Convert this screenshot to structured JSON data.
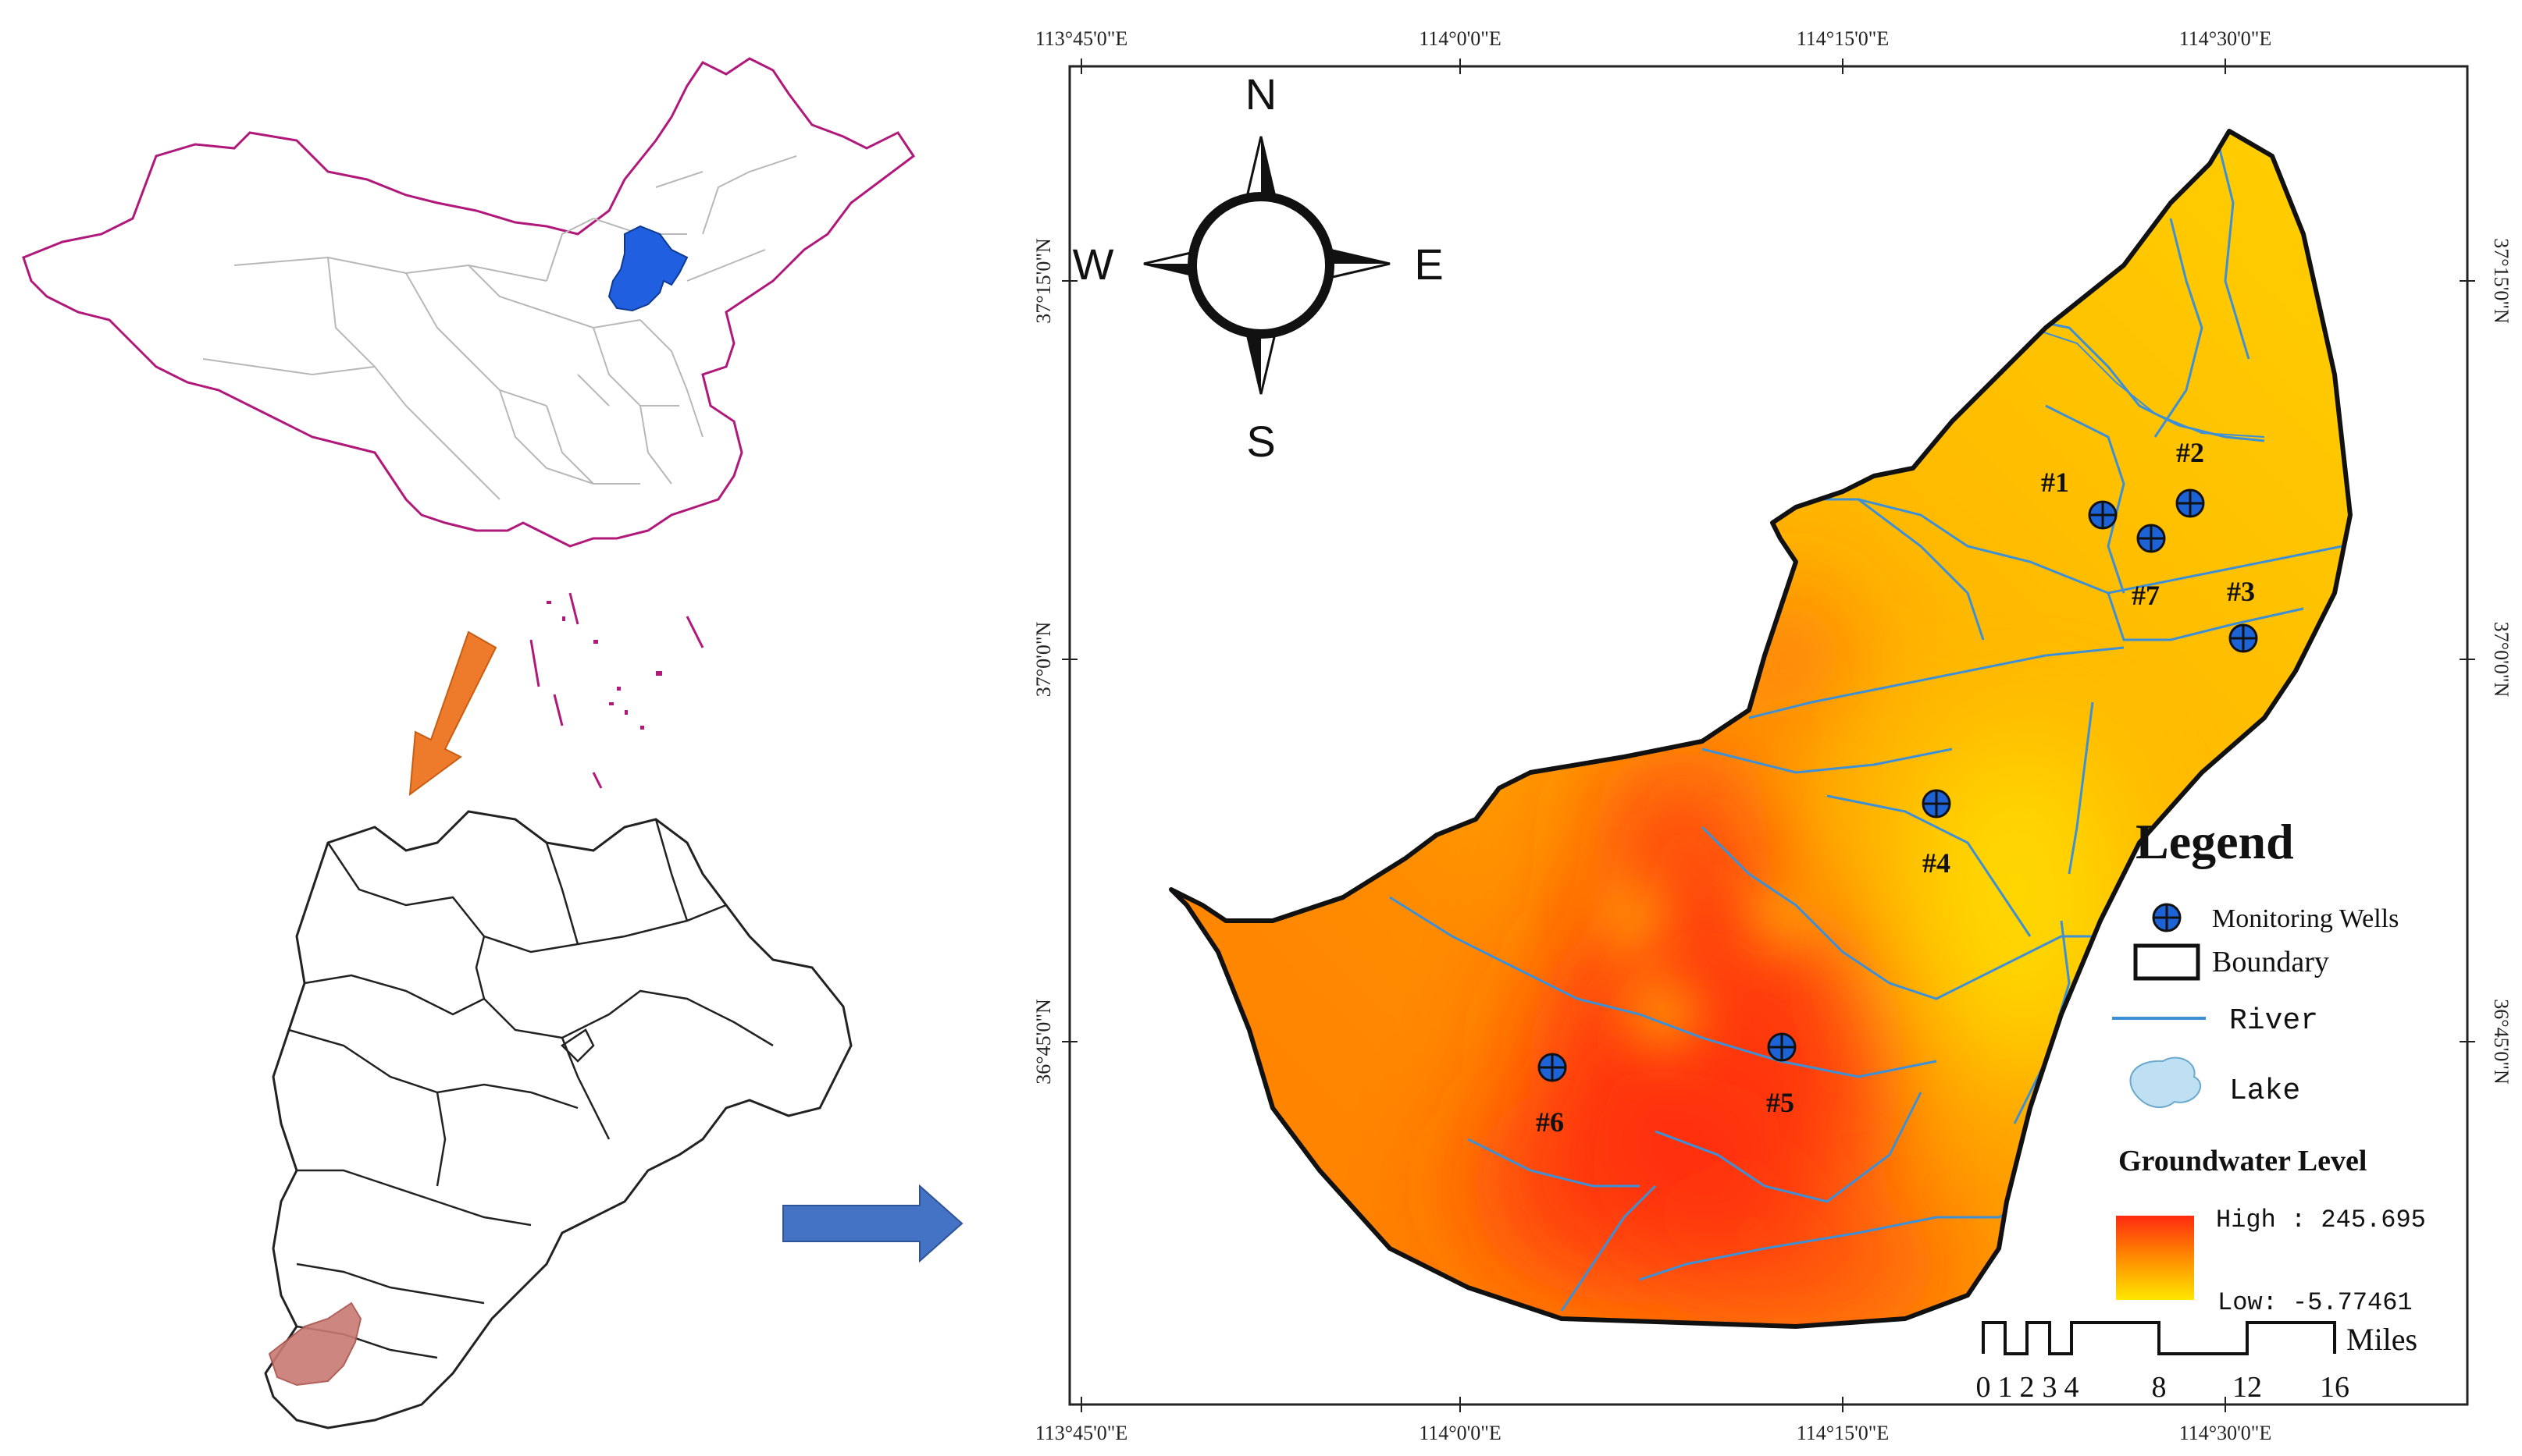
{
  "colors": {
    "china_outline": "#b0187a",
    "province_lines": "#b8b8b8",
    "hebei_fill": "#1f5fe0",
    "study_area_fill": "#c97a74",
    "orange_arrow": "#ee7a2c",
    "blue_arrow": "#4472c4",
    "river": "#3d8fd6",
    "lake": "#bfe0f2",
    "well_fill": "#1d63d6",
    "level_high": "#ff2a10",
    "level_mid": "#ff8c00",
    "level_low": "#ffe600"
  },
  "icons": {
    "well": "crosshair-circle-icon",
    "compass": "compass-rose-icon",
    "lake": "lake-blob-icon"
  },
  "map": {
    "lon_ticks_top": [
      "113°45'0\"E",
      "114°0'0\"E",
      "114°15'0\"E",
      "114°30'0\"E"
    ],
    "lon_ticks_bottom": [
      "113°45'0\"E",
      "114°0'0\"E",
      "114°15'0\"E",
      "114°30'0\"E"
    ],
    "lat_ticks_left": [
      "37°15'0\"N",
      "37°0'0\"N",
      "36°45'0\"N"
    ],
    "lat_ticks_right": [
      "37°15'0\"N",
      "37°0'0\"N",
      "36°45'0\"N"
    ],
    "compass": {
      "n": "N",
      "s": "S",
      "e": "E",
      "w": "W"
    },
    "wells": [
      {
        "label": "#1"
      },
      {
        "label": "#2"
      },
      {
        "label": "#3"
      },
      {
        "label": "#4"
      },
      {
        "label": "#5"
      },
      {
        "label": "#6"
      },
      {
        "label": "#7"
      }
    ]
  },
  "legend": {
    "title": "Legend",
    "items": {
      "wells": "Monitoring Wells",
      "boundary": "Boundary",
      "river": "River",
      "lake": "Lake"
    },
    "gw_title": "Groundwater Level",
    "high": "High : 245.695",
    "low": "Low: -5.77461",
    "scale_ticks": [
      "0",
      "1",
      "2",
      "3",
      "4",
      "8",
      "12",
      "16"
    ],
    "scale_unit": "Miles"
  }
}
